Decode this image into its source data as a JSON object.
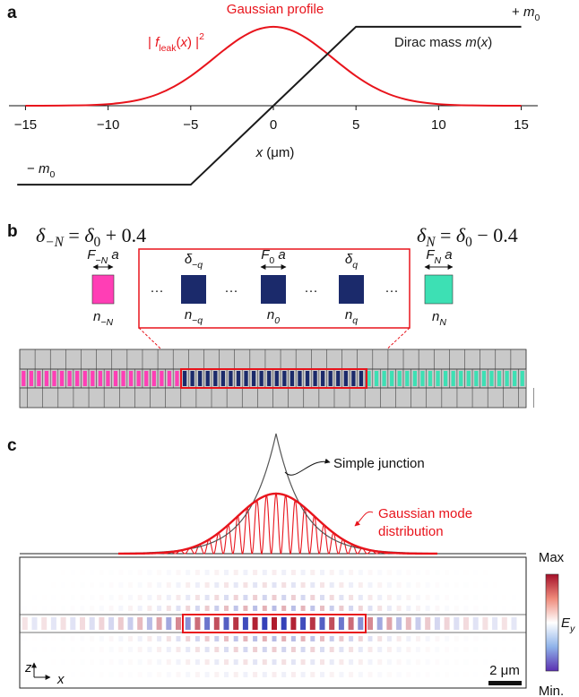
{
  "chart_data": {
    "type": "line",
    "panel_label": "a",
    "title": "Gaussian profile",
    "xlabel": [
      "x",
      " (μm)"
    ],
    "xlim": [
      -16,
      16
    ],
    "ylim": [
      -1.1,
      1.1
    ],
    "xticks": [
      {
        "value": -15,
        "label": "−15"
      },
      {
        "value": -10,
        "label": "−10"
      },
      {
        "value": -5,
        "label": "−5"
      },
      0,
      5,
      10,
      15
    ],
    "series": [
      {
        "name": [
          "| ",
          "f",
          "leak",
          "(",
          "x",
          ")",
          " |",
          "2"
        ],
        "color": "#e8141c",
        "smooth": true,
        "x": [
          -15,
          -14,
          -13,
          -12,
          -11,
          -10,
          -9,
          -8,
          -7,
          -6,
          -5,
          -4,
          -3,
          -2,
          -1,
          0,
          1,
          2,
          3,
          4,
          5,
          6,
          7,
          8,
          9,
          10,
          11,
          12,
          13,
          14,
          15
        ],
        "values": [
          0,
          0,
          0.001,
          0.004,
          0.009,
          0.02,
          0.042,
          0.081,
          0.146,
          0.244,
          0.375,
          0.534,
          0.703,
          0.855,
          0.962,
          1,
          0.962,
          0.855,
          0.703,
          0.534,
          0.375,
          0.244,
          0.146,
          0.081,
          0.042,
          0.02,
          0.009,
          0.004,
          0.001,
          0,
          0
        ]
      },
      {
        "name": [
          "Dirac mass ",
          "m",
          "(",
          "x",
          ")"
        ],
        "color": "#1a1a1a",
        "smooth": false,
        "x": [
          -15.5,
          -5,
          5,
          15
        ],
        "values": [
          -1,
          -1,
          1,
          1
        ]
      }
    ],
    "annotations": [
      [
        "+ ",
        "m",
        "0"
      ],
      [
        "− ",
        "m",
        "0"
      ]
    ]
  },
  "panel_b": {
    "label": "b",
    "left_formula": [
      "δ",
      "−N",
      " = ",
      "δ",
      "0",
      " + 0.4"
    ],
    "right_formula": [
      "δ",
      "N",
      " = ",
      "δ",
      "0",
      " − 0.4"
    ],
    "cells": [
      {
        "top": [
          "F",
          "−N",
          " a"
        ],
        "bottom": [
          "n",
          "−N"
        ]
      },
      {
        "top": [
          "δ",
          "−q"
        ],
        "bottom": [
          "n",
          "−q"
        ]
      },
      {
        "top": [
          "F",
          "0",
          " a"
        ],
        "bottom": [
          "n",
          "0"
        ]
      },
      {
        "top": [
          "δ",
          "q"
        ],
        "bottom": [
          "n",
          "q"
        ]
      },
      {
        "top": [
          "F",
          "N",
          " a"
        ],
        "bottom": [
          "n",
          "N"
        ]
      }
    ],
    "ellipsis": "···"
  },
  "panel_c": {
    "label": "c",
    "simple_junction": "Simple junction",
    "gaussian_mode": [
      "Gaussian mode",
      "distribution"
    ],
    "colorbar": {
      "max": "Max",
      "min": "Min.",
      "quantity": [
        "E",
        "y"
      ]
    },
    "axes": {
      "z": "z",
      "x": "x"
    },
    "scale_bar": "2 μm"
  }
}
